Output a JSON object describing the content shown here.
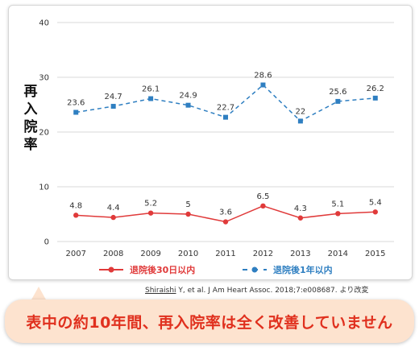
{
  "chart_data": {
    "type": "line",
    "x": [
      "2007",
      "2008",
      "2009",
      "2010",
      "2011",
      "2012",
      "2013",
      "2014",
      "2015"
    ],
    "ylabel": "再入院率",
    "ylim": [
      0,
      40
    ],
    "yticks": [
      0,
      10,
      20,
      30,
      40
    ],
    "grid": "horizontal",
    "legend_position": "bottom",
    "series": [
      {
        "name": "退院後30日以内",
        "values": [
          4.8,
          4.4,
          5.2,
          5,
          3.6,
          6.5,
          4.3,
          5.1,
          5.4
        ],
        "labels": [
          "4.8",
          "4.4",
          "5.2",
          "5",
          "3.6",
          "6.5",
          "4.3",
          "5.1",
          "5.4"
        ],
        "color": "#e03a3a",
        "line_style": "solid",
        "marker": "circle"
      },
      {
        "name": "退院後1年以内",
        "values": [
          23.6,
          24.7,
          26.1,
          24.9,
          22.7,
          28.6,
          22,
          25.6,
          26.2
        ],
        "labels": [
          "23.6",
          "24.7",
          "26.1",
          "24.9",
          "22.7",
          "28.6",
          "22",
          "25.6",
          "26.2"
        ],
        "color": "#2f7fc1",
        "line_style": "dashed",
        "marker": "square"
      }
    ]
  },
  "citation": {
    "author": "Shiraishi",
    "rest": " Y, et al. J Am Heart Assoc. 2018;7:e008687. より改変"
  },
  "callout": {
    "text": "表中の約10年間、再入院率は全く改善していません",
    "color": "#e0301e",
    "background": "#fde3cf"
  }
}
